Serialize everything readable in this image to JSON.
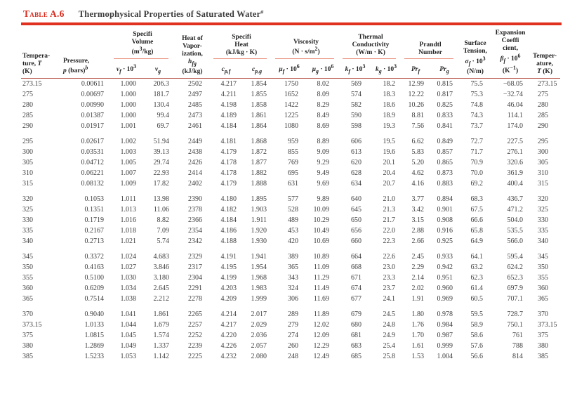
{
  "colors": {
    "accent_red": "#e0301f",
    "title_red": "#d92b1e",
    "group_underline_red": "#e9927f",
    "header_rule_red": "#b8574a",
    "body_text": "#3d3d3d"
  },
  "title": {
    "label": "Table A.6",
    "text_html": "Thermophysical Properties of Saturated Water<sup><i>a</i></sup>"
  },
  "header": {
    "col_temperature_html": "Tempera-<br>ture, <i>T</i><br>(K)",
    "col_pressure_html": "Pressure,<br><i>p</i> (bars)<sup><i>b</i></sup>",
    "group_specific_volume_html": "Specifi<br>Volume<br>(m<sup>3</sup>/kg)",
    "sub_vf_html": "<i>v<sub>f</sub></i> · 10<sup>3</sup>",
    "sub_vg_html": "<i>v<sub>g</sub></i>",
    "col_hfg_html": "Heat of<br>Vapor-<br>ization,<br><i>h<sub>fg</sub></i><br>(kJ/kg)",
    "group_specific_heat_html": "Specifi<br>Heat<br>(kJ/kg · K)",
    "sub_cpf_html": "<i>c<sub>p,f</sub></i>",
    "sub_cpg_html": "<i>c<sub>p,g</sub></i>",
    "group_viscosity_html": "Viscosity<br>(N · s/m<sup>2</sup>)",
    "sub_muf_html": "<i>μ<sub>f</sub></i> · 10<sup>6</sup>",
    "sub_mug_html": "<i>μ<sub>g</sub></i> · 10<sup>6</sup>",
    "group_thermal_conductivity_html": "Thermal<br>Conductivity<br>(W/m · K)",
    "sub_kf_html": "<i>k<sub>f</sub></i> · 10<sup>3</sup>",
    "sub_kg_html": "<i>k<sub>g</sub></i> · 10<sup>3</sup>",
    "group_prandtl_html": "Prandtl<br>Number",
    "sub_prf_html": "<i>Pr<sub>f</sub></i>",
    "sub_prg_html": "<i>Pr<sub>g</sub></i>",
    "col_surface_tension_html": "Surface<br>Tension,<br><i>σ<sub>f</sub></i> · 10<sup>3</sup><br>(N/m)",
    "col_expansion_html": "Expansion<br>Coeffi<br>cient,<br><i>β<sub>f</sub></i> · 10<sup>6</sup><br>(K<sup>−1</sup>)",
    "col_temperature_right_html": "Temper-<br>ature,<br><i>T</i> (K)"
  },
  "table": {
    "column_keys": [
      "T",
      "p",
      "vf",
      "vg",
      "hfg",
      "cpf",
      "cpg",
      "muf",
      "mug",
      "kf",
      "kg",
      "Prf",
      "Prg",
      "sigma",
      "beta",
      "T2"
    ],
    "groups": [
      [
        [
          "273.15",
          "0.00611",
          "1.000",
          "206.3",
          "2502",
          "4.217",
          "1.854",
          "1750",
          "8.02",
          "569",
          "18.2",
          "12.99",
          "0.815",
          "75.5",
          "−68.05",
          "273.15"
        ],
        [
          "275",
          "0.00697",
          "1.000",
          "181.7",
          "2497",
          "4.211",
          "1.855",
          "1652",
          "8.09",
          "574",
          "18.3",
          "12.22",
          "0.817",
          "75.3",
          "−32.74",
          "275"
        ],
        [
          "280",
          "0.00990",
          "1.000",
          "130.4",
          "2485",
          "4.198",
          "1.858",
          "1422",
          "8.29",
          "582",
          "18.6",
          "10.26",
          "0.825",
          "74.8",
          "46.04",
          "280"
        ],
        [
          "285",
          "0.01387",
          "1.000",
          "99.4",
          "2473",
          "4.189",
          "1.861",
          "1225",
          "8.49",
          "590",
          "18.9",
          "8.81",
          "0.833",
          "74.3",
          "114.1",
          "285"
        ],
        [
          "290",
          "0.01917",
          "1.001",
          "69.7",
          "2461",
          "4.184",
          "1.864",
          "1080",
          "8.69",
          "598",
          "19.3",
          "7.56",
          "0.841",
          "73.7",
          "174.0",
          "290"
        ]
      ],
      [
        [
          "295",
          "0.02617",
          "1.002",
          "51.94",
          "2449",
          "4.181",
          "1.868",
          "959",
          "8.89",
          "606",
          "19.5",
          "6.62",
          "0.849",
          "72.7",
          "227.5",
          "295"
        ],
        [
          "300",
          "0.03531",
          "1.003",
          "39.13",
          "2438",
          "4.179",
          "1.872",
          "855",
          "9.09",
          "613",
          "19.6",
          "5.83",
          "0.857",
          "71.7",
          "276.1",
          "300"
        ],
        [
          "305",
          "0.04712",
          "1.005",
          "29.74",
          "2426",
          "4.178",
          "1.877",
          "769",
          "9.29",
          "620",
          "20.1",
          "5.20",
          "0.865",
          "70.9",
          "320.6",
          "305"
        ],
        [
          "310",
          "0.06221",
          "1.007",
          "22.93",
          "2414",
          "4.178",
          "1.882",
          "695",
          "9.49",
          "628",
          "20.4",
          "4.62",
          "0.873",
          "70.0",
          "361.9",
          "310"
        ],
        [
          "315",
          "0.08132",
          "1.009",
          "17.82",
          "2402",
          "4.179",
          "1.888",
          "631",
          "9.69",
          "634",
          "20.7",
          "4.16",
          "0.883",
          "69.2",
          "400.4",
          "315"
        ]
      ],
      [
        [
          "320",
          "0.1053",
          "1.011",
          "13.98",
          "2390",
          "4.180",
          "1.895",
          "577",
          "9.89",
          "640",
          "21.0",
          "3.77",
          "0.894",
          "68.3",
          "436.7",
          "320"
        ],
        [
          "325",
          "0.1351",
          "1.013",
          "11.06",
          "2378",
          "4.182",
          "1.903",
          "528",
          "10.09",
          "645",
          "21.3",
          "3.42",
          "0.901",
          "67.5",
          "471.2",
          "325"
        ],
        [
          "330",
          "0.1719",
          "1.016",
          "8.82",
          "2366",
          "4.184",
          "1.911",
          "489",
          "10.29",
          "650",
          "21.7",
          "3.15",
          "0.908",
          "66.6",
          "504.0",
          "330"
        ],
        [
          "335",
          "0.2167",
          "1.018",
          "7.09",
          "2354",
          "4.186",
          "1.920",
          "453",
          "10.49",
          "656",
          "22.0",
          "2.88",
          "0.916",
          "65.8",
          "535.5",
          "335"
        ],
        [
          "340",
          "0.2713",
          "1.021",
          "5.74",
          "2342",
          "4.188",
          "1.930",
          "420",
          "10.69",
          "660",
          "22.3",
          "2.66",
          "0.925",
          "64.9",
          "566.0",
          "340"
        ]
      ],
      [
        [
          "345",
          "0.3372",
          "1.024",
          "4.683",
          "2329",
          "4.191",
          "1.941",
          "389",
          "10.89",
          "664",
          "22.6",
          "2.45",
          "0.933",
          "64.1",
          "595.4",
          "345"
        ],
        [
          "350",
          "0.4163",
          "1.027",
          "3.846",
          "2317",
          "4.195",
          "1.954",
          "365",
          "11.09",
          "668",
          "23.0",
          "2.29",
          "0.942",
          "63.2",
          "624.2",
          "350"
        ],
        [
          "355",
          "0.5100",
          "1.030",
          "3.180",
          "2304",
          "4.199",
          "1.968",
          "343",
          "11.29",
          "671",
          "23.3",
          "2.14",
          "0.951",
          "62.3",
          "652.3",
          "355"
        ],
        [
          "360",
          "0.6209",
          "1.034",
          "2.645",
          "2291",
          "4.203",
          "1.983",
          "324",
          "11.49",
          "674",
          "23.7",
          "2.02",
          "0.960",
          "61.4",
          "697.9",
          "360"
        ],
        [
          "365",
          "0.7514",
          "1.038",
          "2.212",
          "2278",
          "4.209",
          "1.999",
          "306",
          "11.69",
          "677",
          "24.1",
          "1.91",
          "0.969",
          "60.5",
          "707.1",
          "365"
        ]
      ],
      [
        [
          "370",
          "0.9040",
          "1.041",
          "1.861",
          "2265",
          "4.214",
          "2.017",
          "289",
          "11.89",
          "679",
          "24.5",
          "1.80",
          "0.978",
          "59.5",
          "728.7",
          "370"
        ],
        [
          "373.15",
          "1.0133",
          "1.044",
          "1.679",
          "2257",
          "4.217",
          "2.029",
          "279",
          "12.02",
          "680",
          "24.8",
          "1.76",
          "0.984",
          "58.9",
          "750.1",
          "373.15"
        ],
        [
          "375",
          "1.0815",
          "1.045",
          "1.574",
          "2252",
          "4.220",
          "2.036",
          "274",
          "12.09",
          "681",
          "24.9",
          "1.70",
          "0.987",
          "58.6",
          "761",
          "375"
        ],
        [
          "380",
          "1.2869",
          "1.049",
          "1.337",
          "2239",
          "4.226",
          "2.057",
          "260",
          "12.29",
          "683",
          "25.4",
          "1.61",
          "0.999",
          "57.6",
          "788",
          "380"
        ],
        [
          "385",
          "1.5233",
          "1.053",
          "1.142",
          "2225",
          "4.232",
          "2.080",
          "248",
          "12.49",
          "685",
          "25.8",
          "1.53",
          "1.004",
          "56.6",
          "814",
          "385"
        ]
      ]
    ]
  }
}
